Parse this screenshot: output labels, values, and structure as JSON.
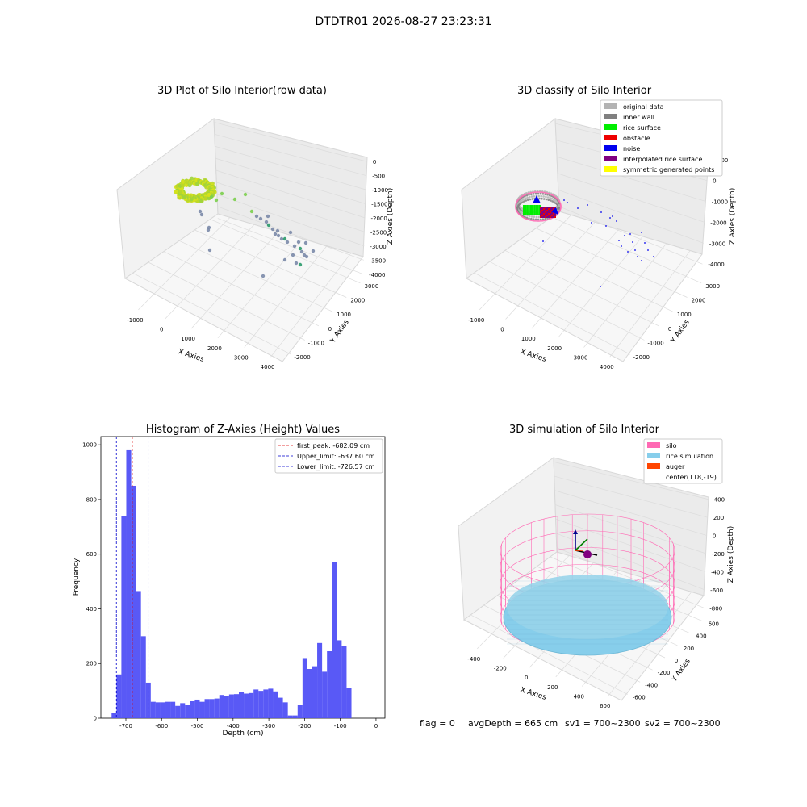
{
  "suptitle": "DTDTR01 2026-08-27 23:23:31",
  "status_line": {
    "flag": "flag = 0",
    "avg_depth": "avgDepth = 665 cm",
    "sv1": "sv1 = 700~2300",
    "sv2": "sv2 = 700~2300"
  },
  "chart_data": [
    {
      "type": "scatter",
      "title": "3D Plot of Silo Interior(row data)",
      "xlabel": "X Axies",
      "ylabel": "Y Axies",
      "zlabel": "Z Axies (Depth)",
      "xticks": [
        "-1000",
        "0",
        "1000",
        "2000",
        "3000",
        "4000"
      ],
      "yticks": [
        "-2000",
        "-1000",
        "0",
        "1000",
        "2000",
        "3000"
      ],
      "zticks": [
        "0",
        "-500",
        "-1000",
        "-1500",
        "-2000",
        "-2500",
        "-3000",
        "-3500",
        "-4000"
      ],
      "colors": {
        "near": "#d8e21a",
        "mid": "#7ccf4e",
        "far": "#7b8aa8",
        "accent": "#2a9a6a"
      }
    },
    {
      "type": "scatter",
      "title": "3D classify of Silo Interior",
      "xlabel": "X Axies",
      "ylabel": "Y Axies",
      "zlabel": "Z Axies (Depth)",
      "xticks": [
        "-1000",
        "0",
        "1000",
        "2000",
        "3000",
        "4000"
      ],
      "yticks": [
        "-2000",
        "-1000",
        "0",
        "1000",
        "2000",
        "3000"
      ],
      "zticks": [
        "1000",
        "0",
        "-1000",
        "-2000",
        "-3000",
        "-4000"
      ],
      "legend": [
        {
          "label": "original data",
          "color": "#b3b3b3"
        },
        {
          "label": "inner wall",
          "color": "#808080"
        },
        {
          "label": "rice surface",
          "color": "#00ee00"
        },
        {
          "label": "obstacle",
          "color": "#ee0000"
        },
        {
          "label": "noise",
          "color": "#0000ee"
        },
        {
          "label": "interpolated rice surface",
          "color": "#800080"
        },
        {
          "label": "symmetric generated points",
          "color": "#ffff00"
        }
      ],
      "legend_position": "top-right"
    },
    {
      "type": "bar",
      "title": "Histogram of Z-Axies (Height) Values",
      "xlabel": "Depth (cm)",
      "ylabel": "Frequency",
      "xlim": [
        -770,
        25
      ],
      "ylim": [
        0,
        1030
      ],
      "xticks": [
        -700,
        -600,
        -500,
        -400,
        -300,
        -200,
        -100,
        0
      ],
      "yticks": [
        0,
        200,
        400,
        600,
        800,
        1000
      ],
      "bin_width": 13.7,
      "bin_start": -740,
      "values": [
        20,
        160,
        740,
        980,
        850,
        465,
        300,
        130,
        60,
        58,
        58,
        60,
        60,
        45,
        55,
        50,
        62,
        68,
        60,
        70,
        70,
        72,
        85,
        80,
        87,
        88,
        95,
        90,
        92,
        105,
        100,
        105,
        108,
        98,
        75,
        58,
        10,
        10,
        48,
        220,
        180,
        190,
        275,
        170,
        245,
        570,
        285,
        265,
        110
      ],
      "bar_color": "#5050f5",
      "vlines": [
        {
          "label": "first_peak: -682.09 cm",
          "x": -682.09,
          "color": "#dd0000"
        },
        {
          "label": "Upper_limit: -637.60 cm",
          "x": -637.6,
          "color": "#0000cc"
        },
        {
          "label": "Lower_limit: -726.57 cm",
          "x": -726.57,
          "color": "#0000cc"
        }
      ],
      "legend_position": "top-right"
    },
    {
      "type": "scatter",
      "title": "3D simulation of Silo Interior",
      "xlabel": "X Axies",
      "ylabel": "Y Axies",
      "zlabel": "Z Axies (Depth)",
      "xticks": [
        "-400",
        "-200",
        "0",
        "200",
        "400",
        "600"
      ],
      "yticks": [
        "-600",
        "-400",
        "-200",
        "0",
        "200",
        "400",
        "600"
      ],
      "zticks": [
        "400",
        "200",
        "0",
        "-200",
        "-400",
        "-600",
        "-800"
      ],
      "legend": [
        {
          "label": "silo",
          "color": "#ff69b4"
        },
        {
          "label": "rice simulation",
          "color": "#87ceeb"
        },
        {
          "label": "auger",
          "color": "#ff4500"
        },
        {
          "label": "center(118,-19)",
          "color": ""
        }
      ],
      "legend_position": "top-right"
    }
  ]
}
